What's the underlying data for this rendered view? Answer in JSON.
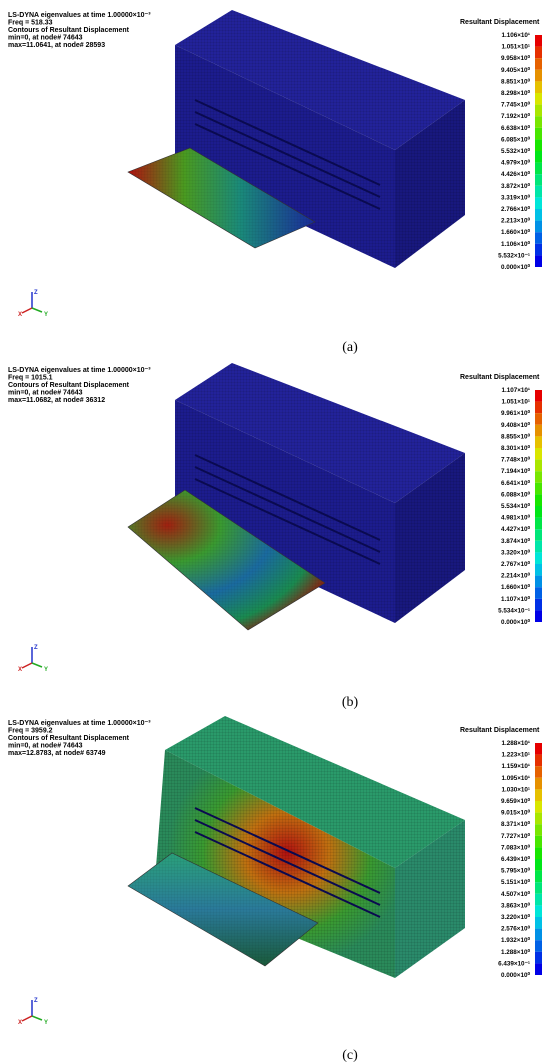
{
  "panels": [
    {
      "header": [
        "LS-DYNA eigenvalues at time  1.00000×10⁻³",
        "Freq =    518.33",
        "Contours of Resultant Displacement",
        " min=0, at node# 74643",
        " max=11.0641, at node# 28593"
      ],
      "legend_title": "Resultant Displacement",
      "legend_labels": [
        "1.106×10¹",
        "1.051×10¹",
        "9.958×10⁰",
        "9.405×10⁰",
        "8.851×10⁰",
        "8.298×10⁰",
        "7.745×10⁰",
        "7.192×10⁰",
        "6.638×10⁰",
        "6.085×10⁰",
        "5.532×10⁰",
        "4.979×10⁰",
        "4.426×10⁰",
        "3.872×10⁰",
        "3.319×10⁰",
        "2.766×10⁰",
        "2.213×10⁰",
        "1.660×10⁰",
        "1.106×10⁰",
        "5.532×10⁻¹",
        "0.000×10⁰"
      ],
      "triad": [
        "Z",
        "X",
        "Y"
      ],
      "caption": "(a)"
    },
    {
      "header": [
        "LS-DYNA eigenvalues at time  1.00000×10⁻³",
        "Freq =    1015.1",
        "Contours of Resultant Displacement",
        " min=0, at node# 74643",
        " max=11.0682, at node# 36312"
      ],
      "legend_title": "Resultant Displacement",
      "legend_labels": [
        "1.107×10¹",
        "1.051×10¹",
        "9.961×10⁰",
        "9.408×10⁰",
        "8.855×10⁰",
        "8.301×10⁰",
        "7.748×10⁰",
        "7.194×10⁰",
        "6.641×10⁰",
        "6.088×10⁰",
        "5.534×10⁰",
        "4.981×10⁰",
        "4.427×10⁰",
        "3.874×10⁰",
        "3.320×10⁰",
        "2.767×10⁰",
        "2.214×10⁰",
        "1.660×10⁰",
        "1.107×10⁰",
        "5.534×10⁻¹",
        "0.000×10⁰"
      ],
      "triad": [
        "Z",
        "X",
        "Y"
      ],
      "caption": "(b)"
    },
    {
      "header": [
        "LS-DYNA eigenvalues at time  1.00000×10⁻³",
        "Freq =    3959.2",
        "Contours of Resultant Displacement",
        " min=0, at node# 74643",
        " max=12.8783, at node# 63749"
      ],
      "legend_title": "Resultant Displacement",
      "legend_labels": [
        "1.288×10¹",
        "1.223×10¹",
        "1.159×10¹",
        "1.095×10¹",
        "1.030×10¹",
        "9.659×10⁰",
        "9.015×10⁰",
        "8.371×10⁰",
        "7.727×10⁰",
        "7.083×10⁰",
        "6.439×10⁰",
        "5.795×10⁰",
        "5.151×10⁰",
        "4.507×10⁰",
        "3.863×10⁰",
        "3.220×10⁰",
        "2.576×10⁰",
        "1.932×10⁰",
        "1.288×10⁰",
        "6.439×10⁻¹",
        "0.000×10⁰"
      ],
      "triad": [
        "Z",
        "X",
        "Y"
      ],
      "caption": "(c)"
    }
  ]
}
